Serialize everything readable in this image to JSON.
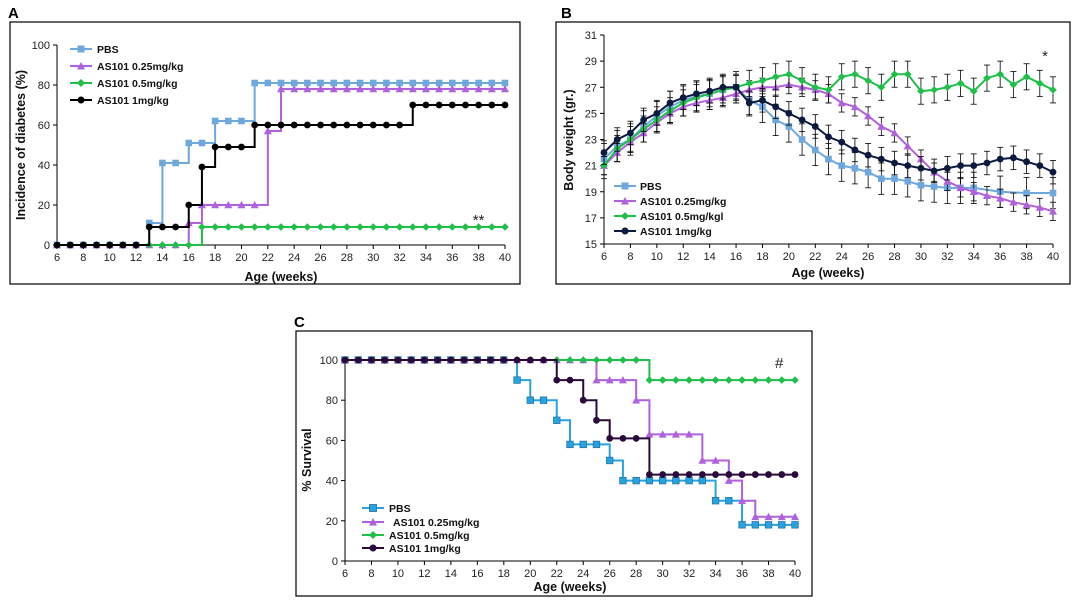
{
  "panels": [
    "A",
    "B",
    "C"
  ],
  "colors": {
    "pbs": "#6fa8dc",
    "pbs_c": "#29a3e0",
    "low": "#b061dc",
    "mid": "#1fbf4a",
    "high": "#000000",
    "high_b": "#0b1a3d",
    "high_c": "#2a0a3a"
  },
  "chart_data": [
    {
      "type": "line",
      "panel": "A",
      "xlabel": "Age (weeks)",
      "ylabel": "Incidence of diabetes (%)",
      "xlim": [
        6,
        40
      ],
      "ylim": [
        0,
        100
      ],
      "xticks": [
        6,
        8,
        10,
        12,
        14,
        16,
        18,
        20,
        22,
        24,
        26,
        28,
        30,
        32,
        34,
        36,
        38,
        40
      ],
      "yticks": [
        0,
        20,
        40,
        60,
        80,
        100
      ],
      "annotation": {
        "text": "**",
        "x": 38,
        "y": 10
      },
      "x": [
        6,
        7,
        8,
        9,
        10,
        11,
        12,
        13,
        14,
        15,
        16,
        17,
        18,
        19,
        20,
        21,
        22,
        23,
        24,
        25,
        26,
        27,
        28,
        29,
        30,
        31,
        32,
        33,
        34,
        35,
        36,
        37,
        38,
        39,
        40
      ],
      "series": [
        {
          "name": "PBS",
          "values": [
            0,
            0,
            0,
            0,
            0,
            0,
            0,
            11,
            41,
            41,
            51,
            51,
            62,
            62,
            62,
            81,
            81,
            81,
            81,
            81,
            81,
            81,
            81,
            81,
            81,
            81,
            81,
            81,
            81,
            81,
            81,
            81,
            81,
            81,
            81
          ]
        },
        {
          "name": "AS101 0.25mg/kg",
          "values": [
            0,
            0,
            0,
            0,
            0,
            0,
            0,
            0,
            0,
            0,
            11,
            20,
            20,
            20,
            20,
            20,
            57,
            78,
            78,
            78,
            78,
            78,
            78,
            78,
            78,
            78,
            78,
            78,
            78,
            78,
            78,
            78,
            78,
            78,
            78
          ]
        },
        {
          "name": "AS101 0.5mg/kg",
          "values": [
            0,
            0,
            0,
            0,
            0,
            0,
            0,
            0,
            0,
            0,
            0,
            9,
            9,
            9,
            9,
            9,
            9,
            9,
            9,
            9,
            9,
            9,
            9,
            9,
            9,
            9,
            9,
            9,
            9,
            9,
            9,
            9,
            9,
            9,
            9
          ]
        },
        {
          "name": "AS101 1mg/kg",
          "values": [
            0,
            0,
            0,
            0,
            0,
            0,
            0,
            9,
            9,
            9,
            20,
            39,
            49,
            49,
            49,
            60,
            60,
            60,
            60,
            60,
            60,
            60,
            60,
            60,
            60,
            60,
            60,
            70,
            70,
            70,
            70,
            70,
            70,
            70,
            70
          ]
        }
      ]
    },
    {
      "type": "line",
      "panel": "B",
      "xlabel": "Age (weeks)",
      "ylabel": "Body weight (gr.)",
      "xlim": [
        6,
        40
      ],
      "ylim": [
        15,
        31
      ],
      "xticks": [
        6,
        8,
        10,
        12,
        14,
        16,
        18,
        20,
        22,
        24,
        26,
        28,
        30,
        32,
        34,
        36,
        38,
        40
      ],
      "yticks": [
        15,
        17,
        19,
        21,
        23,
        25,
        27,
        29,
        31
      ],
      "annotation": {
        "text": "*",
        "x": 39.4,
        "y": 29
      },
      "series": [
        {
          "name": "PBS",
          "x": [
            6,
            7,
            8,
            9,
            10,
            11,
            12,
            13,
            14,
            15,
            16,
            17,
            18,
            19,
            20,
            21,
            22,
            23,
            24,
            25,
            26,
            27,
            28,
            29,
            30,
            31,
            32,
            33,
            34,
            36,
            38,
            40
          ],
          "values": [
            21.5,
            22.5,
            23,
            24,
            24.8,
            25.5,
            26,
            26.3,
            26.5,
            26.8,
            27,
            26,
            25.5,
            24.5,
            24,
            23,
            22.2,
            21.5,
            21,
            20.8,
            20.5,
            20,
            20,
            19.8,
            19.5,
            19.4,
            19.3,
            19.3,
            19.3,
            19,
            18.9,
            18.9
          ],
          "err": 1.2
        },
        {
          "name": "AS101 0.25mg/kg",
          "x": [
            6,
            7,
            8,
            9,
            10,
            11,
            12,
            13,
            14,
            15,
            16,
            17,
            18,
            19,
            20,
            21,
            22,
            23,
            24,
            25,
            26,
            27,
            28,
            29,
            30,
            31,
            32,
            33,
            34,
            35,
            36,
            37,
            38,
            39,
            40
          ],
          "values": [
            21,
            22,
            22.8,
            23.5,
            24.3,
            25,
            25.5,
            25.8,
            26,
            26.2,
            26.5,
            26.8,
            27,
            27,
            27.2,
            27,
            26.8,
            26.5,
            25.8,
            25.5,
            24.8,
            24,
            23.5,
            22.5,
            21.5,
            20.5,
            19.8,
            19.3,
            19,
            18.7,
            18.5,
            18.2,
            18,
            17.8,
            17.5
          ],
          "err": 0.7
        },
        {
          "name": "AS101 0.5mg/kg",
          "x": [
            6,
            7,
            8,
            9,
            10,
            11,
            12,
            13,
            14,
            15,
            16,
            17,
            18,
            19,
            20,
            21,
            22,
            23,
            24,
            25,
            26,
            27,
            28,
            29,
            30,
            31,
            32,
            33,
            34,
            35,
            36,
            37,
            38,
            39,
            40
          ],
          "values": [
            21,
            22.3,
            23,
            23.8,
            24.5,
            25.2,
            25.8,
            26.2,
            26.5,
            26.8,
            27,
            27.3,
            27.5,
            27.8,
            28,
            27.5,
            27,
            26.8,
            27.8,
            28,
            27.5,
            27,
            28,
            28,
            26.7,
            26.8,
            27,
            27.3,
            26.7,
            27.7,
            28,
            27.2,
            27.8,
            27.3,
            26.8
          ],
          "err": 1.0
        },
        {
          "name": "AS101 1mg/kg",
          "x": [
            6,
            7,
            8,
            9,
            10,
            11,
            12,
            13,
            14,
            15,
            16,
            17,
            18,
            19,
            20,
            21,
            22,
            23,
            24,
            25,
            26,
            27,
            28,
            29,
            30,
            31,
            32,
            33,
            34,
            35,
            36,
            37,
            38,
            39,
            40
          ],
          "values": [
            22,
            23,
            23.5,
            24.5,
            25,
            25.8,
            26.2,
            26.5,
            26.7,
            27,
            27,
            25.8,
            26,
            25.5,
            25,
            24.5,
            24,
            23.2,
            22.8,
            22.2,
            21.8,
            21.5,
            21.2,
            21,
            20.8,
            20.6,
            20.8,
            21,
            21,
            21.2,
            21.5,
            21.6,
            21.3,
            21,
            20.5
          ],
          "err": 0.9
        }
      ],
      "legend": [
        "PBS",
        "AS101 0.25mg/kg",
        "AS101 0.5mg/kgl",
        "AS101 1mg/kg"
      ]
    },
    {
      "type": "line",
      "panel": "C",
      "xlabel": "Age (weeks)",
      "ylabel": "% Survival",
      "xlim": [
        6,
        40
      ],
      "ylim": [
        0,
        100
      ],
      "xticks": [
        6,
        8,
        10,
        12,
        14,
        16,
        18,
        20,
        22,
        24,
        26,
        28,
        30,
        32,
        34,
        36,
        38,
        40
      ],
      "yticks": [
        0,
        20,
        40,
        60,
        80,
        100
      ],
      "annotation": {
        "text": "#",
        "x": 38.8,
        "y": 96
      },
      "x": [
        6,
        7,
        8,
        9,
        10,
        11,
        12,
        13,
        14,
        15,
        16,
        17,
        18,
        19,
        20,
        21,
        22,
        23,
        24,
        25,
        26,
        27,
        28,
        29,
        30,
        31,
        32,
        33,
        34,
        35,
        36,
        37,
        38,
        39,
        40
      ],
      "series": [
        {
          "name": "PBS",
          "values": [
            100,
            100,
            100,
            100,
            100,
            100,
            100,
            100,
            100,
            100,
            100,
            100,
            100,
            90,
            80,
            80,
            70,
            58,
            58,
            58,
            50,
            40,
            40,
            40,
            40,
            40,
            40,
            40,
            30,
            30,
            18,
            18,
            18,
            18,
            18
          ]
        },
        {
          "name": "AS101 0.25mg/kg",
          "values": [
            100,
            100,
            100,
            100,
            100,
            100,
            100,
            100,
            100,
            100,
            100,
            100,
            100,
            100,
            100,
            100,
            100,
            100,
            100,
            90,
            90,
            90,
            80,
            63,
            63,
            63,
            63,
            50,
            50,
            40,
            30,
            22,
            22,
            22,
            22
          ]
        },
        {
          "name": "AS101 0.5mg/kg",
          "values": [
            100,
            100,
            100,
            100,
            100,
            100,
            100,
            100,
            100,
            100,
            100,
            100,
            100,
            100,
            100,
            100,
            100,
            100,
            100,
            100,
            100,
            100,
            100,
            90,
            90,
            90,
            90,
            90,
            90,
            90,
            90,
            90,
            90,
            90,
            90
          ]
        },
        {
          "name": "AS101 1mg/kg",
          "values": [
            100,
            100,
            100,
            100,
            100,
            100,
            100,
            100,
            100,
            100,
            100,
            100,
            100,
            100,
            100,
            100,
            90,
            90,
            80,
            70,
            61,
            61,
            61,
            43,
            43,
            43,
            43,
            43,
            43,
            43,
            43,
            43,
            43,
            43,
            43
          ]
        }
      ],
      "legend": [
        "PBS",
        "AS101 0.25mg/kg",
        "AS101 0.5mg/kg",
        "AS101 1mg/kg"
      ]
    }
  ]
}
